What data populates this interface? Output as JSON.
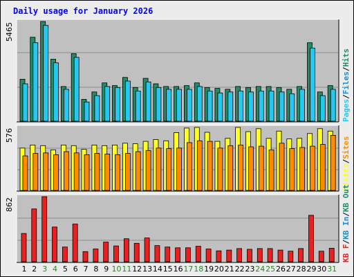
{
  "title": "Daily usage for January 2026",
  "colors": {
    "background": "#ececec",
    "panel": "#c0c0c0",
    "gridline": "#8c8c8c",
    "frame": "#000000",
    "title_text": "#0000ff",
    "hits": "#228b68",
    "files": "#26c8f0",
    "pages": "#1e8fc8",
    "visits": "#ffff28",
    "sites": "#ff8c00",
    "kb_f": "#e82020",
    "kb_in": "#1e8fc8",
    "kb_out": "#228b68",
    "weekend_label": "#228b22",
    "weekday_label": "#000000"
  },
  "chart_data": [
    {
      "type": "bar",
      "panel": "top",
      "ymax_label": "5465",
      "legend": [
        "Pages",
        "/",
        "Files",
        "/",
        "Hits"
      ],
      "legend_colors": [
        "#26c8f0",
        "#000000",
        "#1e8fc8",
        "#000000",
        "#228b68"
      ],
      "series": [
        {
          "name": "Hits",
          "values": [
            2300,
            4600,
            5465,
            3400,
            1900,
            3700,
            1200,
            1600,
            2100,
            1950,
            2400,
            1850,
            2350,
            2050,
            1900,
            1900,
            1950,
            2100,
            1850,
            1800,
            1750,
            1900,
            1850,
            1900,
            1900,
            1850,
            1750,
            1900,
            4300,
            1600,
            1950
          ]
        },
        {
          "name": "Files",
          "values": [
            2050,
            4300,
            5250,
            3200,
            1750,
            3500,
            1050,
            1400,
            1900,
            1850,
            2200,
            1650,
            2150,
            1850,
            1750,
            1750,
            1750,
            1900,
            1650,
            1550,
            1600,
            1650,
            1600,
            1650,
            1650,
            1600,
            1500,
            1750,
            4000,
            1400,
            1750
          ]
        }
      ]
    },
    {
      "type": "bar",
      "panel": "middle",
      "ymax_label": "576",
      "legend": [
        "Visits",
        "/",
        "Sites"
      ],
      "legend_colors": [
        "#ffff28",
        "#000000",
        "#ff8c00"
      ],
      "series": [
        {
          "name": "Visits",
          "values": [
            350,
            375,
            370,
            335,
            375,
            370,
            340,
            375,
            370,
            375,
            390,
            385,
            405,
            420,
            410,
            478,
            515,
            520,
            480,
            405,
            430,
            520,
            485,
            510,
            430,
            490,
            425,
            430,
            470,
            510,
            490
          ]
        },
        {
          "name": "Sites",
          "values": [
            285,
            305,
            310,
            295,
            320,
            310,
            295,
            305,
            300,
            295,
            305,
            320,
            330,
            350,
            345,
            350,
            395,
            410,
            405,
            350,
            370,
            375,
            360,
            365,
            335,
            390,
            345,
            355,
            365,
            380,
            455
          ]
        }
      ]
    },
    {
      "type": "bar",
      "panel": "bottom",
      "ymax_label": "862",
      "legend": [
        "KB F",
        "/",
        "KB In",
        "/",
        "KB Out"
      ],
      "legend_colors": [
        "#e82020",
        "#000000",
        "#1e8fc8",
        "#000000",
        "#228b68"
      ],
      "series": [
        {
          "name": "KB F",
          "values": [
            375,
            700,
            862,
            460,
            195,
            500,
            135,
            170,
            260,
            210,
            305,
            245,
            315,
            215,
            195,
            185,
            185,
            205,
            170,
            145,
            155,
            175,
            165,
            175,
            175,
            155,
            140,
            175,
            615,
            140,
            180
          ]
        }
      ]
    }
  ],
  "x": {
    "categories": [
      "1",
      "2",
      "3",
      "4",
      "5",
      "6",
      "7",
      "8",
      "9",
      "10",
      "11",
      "12",
      "13",
      "14",
      "15",
      "16",
      "17",
      "18",
      "19",
      "20",
      "21",
      "22",
      "23",
      "24",
      "25",
      "26",
      "27",
      "28",
      "29",
      "30",
      "31"
    ],
    "weekend_days": [
      3,
      4,
      10,
      11,
      17,
      18,
      24,
      25,
      31
    ]
  }
}
